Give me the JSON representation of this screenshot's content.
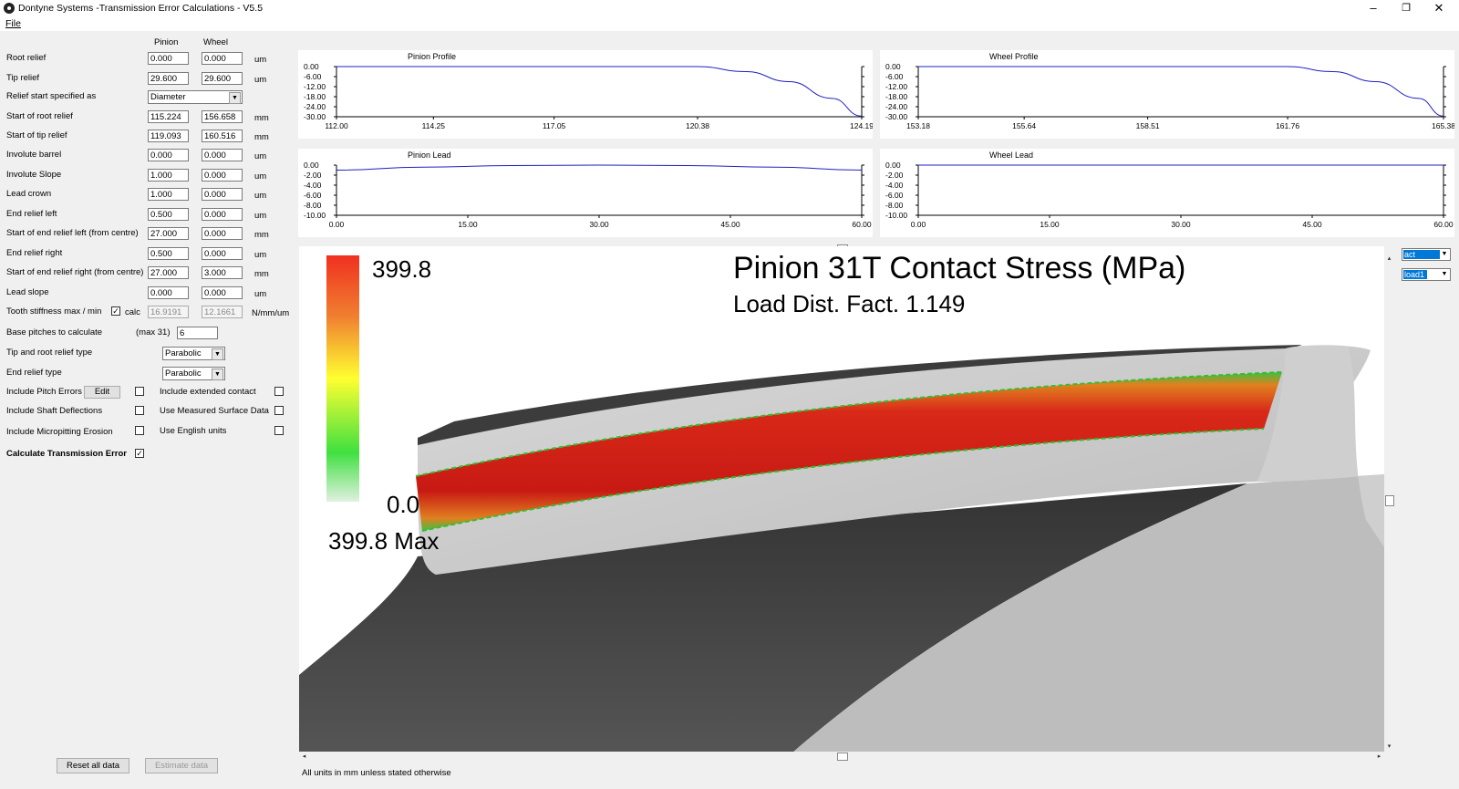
{
  "window": {
    "title": "Dontyne Systems -Transmission Error Calculations - V5.5",
    "minimize": "–",
    "maximize": "❐",
    "close": "✕"
  },
  "menu": {
    "file": "File"
  },
  "columns": {
    "pinion": "Pinion",
    "wheel": "Wheel"
  },
  "params": [
    {
      "label": "Root relief",
      "pinion": "0.000",
      "wheel": "0.000",
      "unit": "um"
    },
    {
      "label": "Tip relief",
      "pinion": "29.600",
      "wheel": "29.600",
      "unit": "um"
    },
    {
      "label": "Relief start specified as"
    },
    {
      "label": "Start of root relief",
      "pinion": "115.224",
      "wheel": "156.658",
      "unit": "mm"
    },
    {
      "label": "Start of tip relief",
      "pinion": "119.093",
      "wheel": "160.516",
      "unit": "mm"
    },
    {
      "label": "Involute barrel",
      "pinion": "0.000",
      "wheel": "0.000",
      "unit": "um"
    },
    {
      "label": "Involute Slope",
      "pinion": "1.000",
      "wheel": "0.000",
      "unit": "um"
    },
    {
      "label": "Lead crown",
      "pinion": "1.000",
      "wheel": "0.000",
      "unit": "um"
    },
    {
      "label": "End relief left",
      "pinion": "0.500",
      "wheel": "0.000",
      "unit": "um"
    },
    {
      "label": "Start of end relief left (from centre)",
      "pinion": "27.000",
      "wheel": "0.000",
      "unit": "mm"
    },
    {
      "label": "End relief right",
      "pinion": "0.500",
      "wheel": "0.000",
      "unit": "um"
    },
    {
      "label": "Start of end relief right (from centre)",
      "pinion": "27.000",
      "wheel": "3.000",
      "unit": "mm"
    },
    {
      "label": "Lead slope",
      "pinion": "0.000",
      "wheel": "0.000",
      "unit": "um"
    },
    {
      "label": "Tooth stiffness max / min",
      "pinion": "16.9191",
      "wheel": "12.1661",
      "unit": "N/mm/um"
    }
  ],
  "relief_start_value": "Diameter",
  "stiffness_calc_label": "calc",
  "stiffness_calc_check": "✓",
  "base_pitches": {
    "label": "Base pitches to calculate",
    "max": "(max  31)",
    "value": "6"
  },
  "tip_root_type": {
    "label": "Tip and root relief type",
    "value": "Parabolic"
  },
  "end_relief_type": {
    "label": "End relief type",
    "value": "Parabolic"
  },
  "options": {
    "pitch_errors": "Include Pitch Errors",
    "edit_button": "Edit",
    "shaft_deflections": "Include Shaft Deflections",
    "micropitting": "Include Micropitting Erosion",
    "extended_contact": "Include extended contact",
    "measured_surface": "Use Measured Surface Data",
    "english_units": "Use English units",
    "calc_te": "Calculate Transmission Error",
    "calc_te_check": "✓"
  },
  "buttons": {
    "reset": "Reset all data",
    "estimate": "Estimate data"
  },
  "footer_note": "All units in mm unless stated otherwise",
  "viewport": {
    "title": "Pinion 31T Contact Stress (MPa)",
    "subtitle": "Load Dist. Fact.  1.149",
    "scale_max": "399.8",
    "scale_min": "0.0",
    "max_label": "399.8 Max",
    "colors": {
      "high": "#e8201c",
      "mid": "#f0f020",
      "low": "#30e030",
      "base": "#f0f0f0"
    }
  },
  "right_selects": {
    "result": "act stress",
    "load": "load1"
  },
  "scroll_arrows": {
    "left": "◂",
    "right": "▸",
    "up": "▴",
    "down": "▾"
  },
  "chart_data": [
    {
      "type": "line",
      "title": "Pinion Profile",
      "x": [
        112.0,
        114.25,
        117.05,
        120.38,
        121.5,
        122.5,
        123.5,
        124.19
      ],
      "y": [
        0,
        0,
        0,
        0,
        -3,
        -9,
        -19,
        -29.6
      ],
      "xticks": [
        "112.00",
        "114.25",
        "117.05",
        "120.38",
        "124.19"
      ],
      "yticks": [
        "0.00",
        "-6.00",
        "-12.00",
        "-18.00",
        "-24.00",
        "-30.00"
      ],
      "xlim": [
        112.0,
        124.19
      ],
      "ylim": [
        -30,
        0
      ]
    },
    {
      "type": "line",
      "title": "Wheel Profile",
      "x": [
        153.18,
        155.64,
        158.51,
        161.76,
        162.8,
        163.8,
        164.8,
        165.38
      ],
      "y": [
        0,
        0,
        0,
        0,
        -3,
        -9,
        -19,
        -29.6
      ],
      "xticks": [
        "153.18",
        "155.64",
        "158.51",
        "161.76",
        "165.38"
      ],
      "yticks": [
        "0.00",
        "-6.00",
        "-12.00",
        "-18.00",
        "-24.00",
        "-30.00"
      ],
      "xlim": [
        153.18,
        165.38
      ],
      "ylim": [
        -30,
        0
      ]
    },
    {
      "type": "line",
      "title": "Pinion Lead",
      "x": [
        0,
        10,
        20,
        30,
        40,
        50,
        60
      ],
      "y": [
        -1.0,
        -0.4,
        -0.1,
        0,
        -0.1,
        -0.4,
        -1.0
      ],
      "xticks": [
        "0.00",
        "15.00",
        "30.00",
        "45.00",
        "60.00"
      ],
      "yticks": [
        "0.00",
        "-2.00",
        "-4.00",
        "-6.00",
        "-8.00",
        "-10.00"
      ],
      "xlim": [
        0,
        60
      ],
      "ylim": [
        -10,
        0
      ]
    },
    {
      "type": "line",
      "title": "Wheel Lead",
      "x": [
        0,
        60
      ],
      "y": [
        0,
        0
      ],
      "xticks": [
        "0.00",
        "15.00",
        "30.00",
        "45.00",
        "60.00"
      ],
      "yticks": [
        "0.00",
        "-2.00",
        "-4.00",
        "-6.00",
        "-8.00",
        "-10.00"
      ],
      "xlim": [
        0,
        60
      ],
      "ylim": [
        -10,
        0
      ]
    }
  ]
}
